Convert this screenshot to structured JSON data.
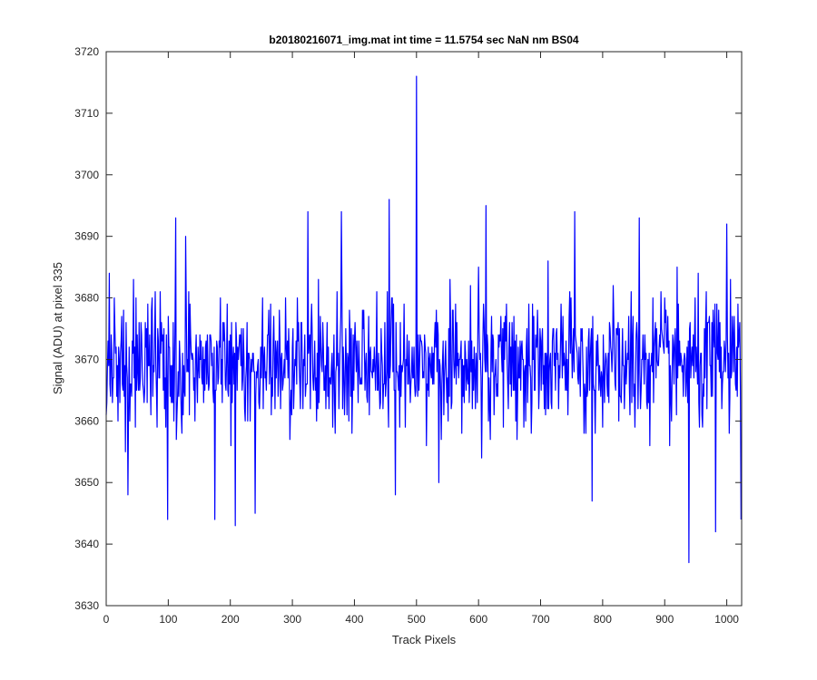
{
  "chart_data": {
    "type": "line",
    "title": "b20180216071_img.mat int time = 11.5754 sec  NaN nm BS04",
    "xlabel": "Track Pixels",
    "ylabel": "Signal (ADU) at pixel 335",
    "xlim": [
      0,
      1024
    ],
    "ylim": [
      3630,
      3720
    ],
    "xticks": [
      0,
      100,
      200,
      300,
      400,
      500,
      600,
      700,
      800,
      900,
      1000
    ],
    "yticks": [
      3630,
      3640,
      3650,
      3660,
      3670,
      3680,
      3690,
      3700,
      3710,
      3720
    ],
    "grid": false,
    "series_color": "#0000ff",
    "series": [
      {
        "n_points": 1024,
        "baseline": 3669,
        "noise_amplitude": 5.5,
        "notable_points": [
          {
            "x": 5,
            "y": 3684
          },
          {
            "x": 35,
            "y": 3648
          },
          {
            "x": 99,
            "y": 3644
          },
          {
            "x": 112,
            "y": 3693
          },
          {
            "x": 128,
            "y": 3690
          },
          {
            "x": 175,
            "y": 3644
          },
          {
            "x": 208,
            "y": 3643
          },
          {
            "x": 240,
            "y": 3645
          },
          {
            "x": 325,
            "y": 3694
          },
          {
            "x": 379,
            "y": 3694
          },
          {
            "x": 456,
            "y": 3696
          },
          {
            "x": 466,
            "y": 3648
          },
          {
            "x": 500,
            "y": 3716
          },
          {
            "x": 536,
            "y": 3650
          },
          {
            "x": 612,
            "y": 3695
          },
          {
            "x": 755,
            "y": 3694
          },
          {
            "x": 783,
            "y": 3647
          },
          {
            "x": 859,
            "y": 3693
          },
          {
            "x": 939,
            "y": 3637
          },
          {
            "x": 982,
            "y": 3642
          },
          {
            "x": 1000,
            "y": 3692
          },
          {
            "x": 1023,
            "y": 3644
          }
        ]
      }
    ]
  }
}
